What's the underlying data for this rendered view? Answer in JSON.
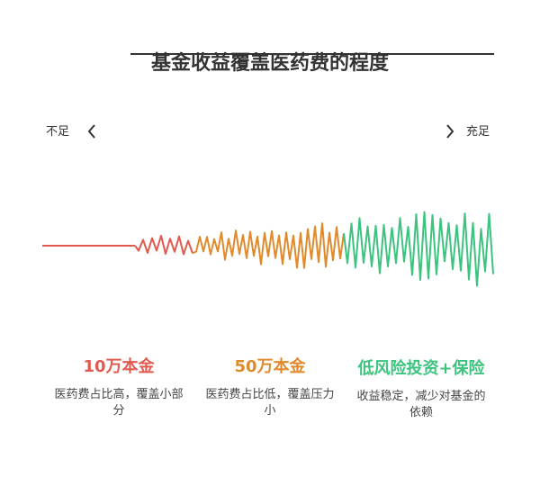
{
  "header": {
    "title": "基金收益覆盖医药费的程度"
  },
  "scale": {
    "low": "不足",
    "high": "充足"
  },
  "columns": [
    {
      "title": "10万本金",
      "text": "医药费占比高，覆盖小部分"
    },
    {
      "title": "50万本金",
      "text": "医药费占比低，覆盖压力小"
    },
    {
      "title": "低风险投资+保险",
      "text": "收益稳定，减少对基金的依赖"
    }
  ]
}
